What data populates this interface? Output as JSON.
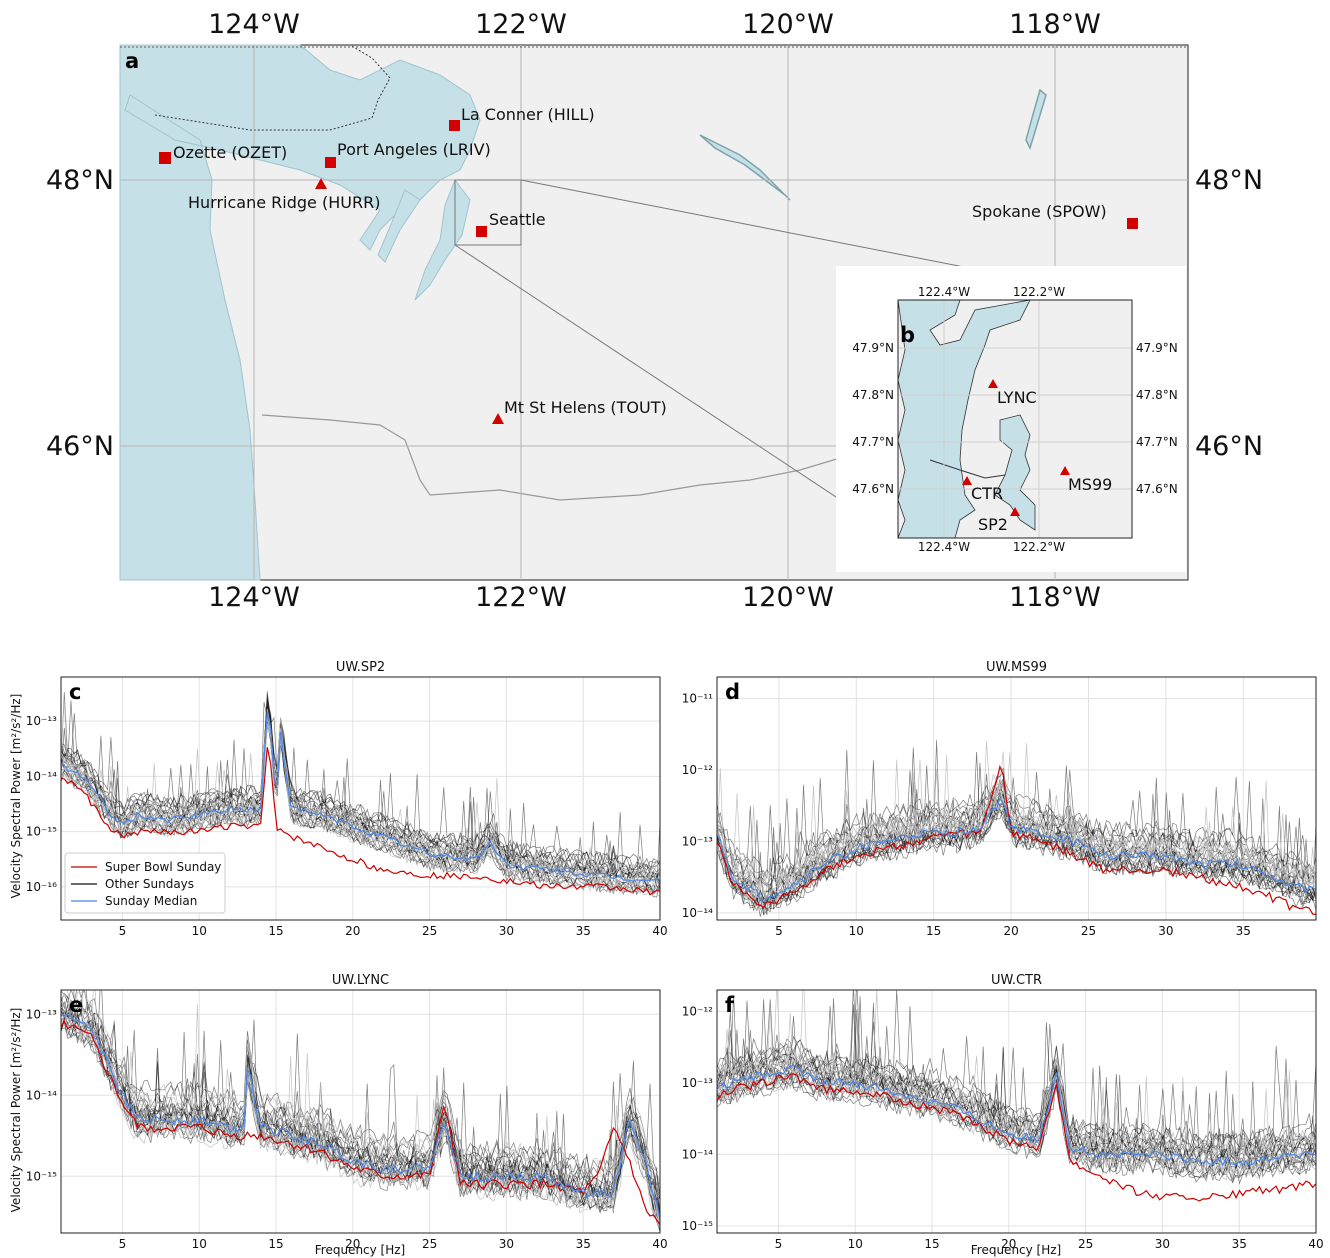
{
  "map_a": {
    "panel_label": "a",
    "lon_labels": [
      "124°W",
      "122°W",
      "120°W",
      "118°W"
    ],
    "lat_labels": [
      "48°N",
      "46°N"
    ],
    "stations": [
      {
        "name": "La Conner (HILL)",
        "lon": -122.5,
        "lat": 48.4,
        "symbol": "square"
      },
      {
        "name": "Ozette (OZET)",
        "lon": -124.65,
        "lat": 48.16,
        "symbol": "square"
      },
      {
        "name": "Port Angeles (LRIV)",
        "lon": -123.45,
        "lat": 48.13,
        "symbol": "square"
      },
      {
        "name": "Hurricane Ridge (HURR)",
        "lon": -123.5,
        "lat": 47.97,
        "symbol": "triangle"
      },
      {
        "name": "Seattle",
        "lon": -122.3,
        "lat": 47.61,
        "symbol": "square"
      },
      {
        "name": "Spokane (SPOW)",
        "lon": -117.45,
        "lat": 47.67,
        "symbol": "square"
      },
      {
        "name": "Mt St Helens (TOUT)",
        "lon": -122.2,
        "lat": 46.2,
        "symbol": "triangle"
      }
    ]
  },
  "map_b": {
    "panel_label": "b",
    "lon_labels": [
      "122.4°W",
      "122.2°W"
    ],
    "lat_labels": [
      "47.9°N",
      "47.8°N",
      "47.7°N",
      "47.6°N"
    ],
    "stations": [
      {
        "name": "LYNC",
        "lon": -122.3,
        "lat": 47.83
      },
      {
        "name": "CTR",
        "lon": -122.35,
        "lat": 47.62
      },
      {
        "name": "SP2",
        "lon": -122.25,
        "lat": 47.56
      },
      {
        "name": "MS99",
        "lon": -122.14,
        "lat": 47.64
      }
    ]
  },
  "colors": {
    "water": "#c6e0e8",
    "land": "#f0f0f0",
    "station": "#d40000",
    "super_bowl": "#cc0000",
    "other": "#111111",
    "median": "#4a86e8"
  },
  "y_axis_label": "Velocity Spectral Power [m²/s²/Hz]",
  "x_axis_label": "Frequency [Hz]",
  "legend": [
    "Super Bowl Sunday",
    "Other Sundays",
    "Sunday Median"
  ],
  "chart_data": [
    {
      "type": "line",
      "panel": "c",
      "title": "UW.SP2",
      "y_log": true,
      "xlim": [
        1,
        40
      ],
      "x_ticks": [
        5,
        10,
        15,
        20,
        25,
        30,
        35,
        40
      ],
      "ylim_exp": [
        -16.6,
        -12.2
      ],
      "y_ticks": [
        {
          "e": -13,
          "label": "10⁻¹³"
        },
        {
          "e": -14,
          "label": "10⁻¹⁴"
        },
        {
          "e": -15,
          "label": "10⁻¹⁵"
        },
        {
          "e": -16,
          "label": "10⁻¹⁶"
        }
      ],
      "median": [
        [
          1,
          -13.8
        ],
        [
          2.5,
          -14.0
        ],
        [
          4,
          -14.6
        ],
        [
          5,
          -14.9
        ],
        [
          6,
          -14.7
        ],
        [
          8,
          -14.8
        ],
        [
          10,
          -14.7
        ],
        [
          12,
          -14.6
        ],
        [
          14,
          -14.6
        ],
        [
          14.5,
          -12.6
        ],
        [
          15,
          -14.5
        ],
        [
          15.3,
          -13.2
        ],
        [
          16,
          -14.6
        ],
        [
          18,
          -14.7
        ],
        [
          20,
          -14.9
        ],
        [
          22,
          -15.1
        ],
        [
          25,
          -15.4
        ],
        [
          28,
          -15.5
        ],
        [
          29,
          -15.2
        ],
        [
          30,
          -15.6
        ],
        [
          33,
          -15.7
        ],
        [
          36,
          -15.8
        ],
        [
          40,
          -15.9
        ]
      ],
      "super_bowl": [
        [
          1,
          -14.0
        ],
        [
          2.5,
          -14.3
        ],
        [
          4,
          -14.9
        ],
        [
          5,
          -15.1
        ],
        [
          6,
          -15.0
        ],
        [
          8,
          -15.0
        ],
        [
          10,
          -15.0
        ],
        [
          12,
          -14.9
        ],
        [
          14,
          -14.9
        ],
        [
          14.5,
          -13.3
        ],
        [
          15,
          -14.9
        ],
        [
          16,
          -15.1
        ],
        [
          18,
          -15.3
        ],
        [
          20,
          -15.5
        ],
        [
          22,
          -15.7
        ],
        [
          25,
          -15.8
        ],
        [
          28,
          -15.8
        ],
        [
          30,
          -15.9
        ],
        [
          33,
          -16.0
        ],
        [
          36,
          -16.0
        ],
        [
          40,
          -16.1
        ]
      ]
    },
    {
      "type": "line",
      "panel": "d",
      "title": "UW.MS99",
      "y_log": true,
      "xlim": [
        1,
        39.7
      ],
      "x_ticks": [
        5,
        10,
        15,
        20,
        25,
        30,
        35
      ],
      "ylim_exp": [
        -14.1,
        -10.7
      ],
      "y_ticks": [
        {
          "e": -11,
          "label": "10⁻¹¹"
        },
        {
          "e": -12,
          "label": "10⁻¹²"
        },
        {
          "e": -13,
          "label": "10⁻¹³"
        },
        {
          "e": -14,
          "label": "10⁻¹⁴"
        }
      ],
      "median": [
        [
          1,
          -12.9
        ],
        [
          2,
          -13.5
        ],
        [
          4,
          -13.8
        ],
        [
          5,
          -13.7
        ],
        [
          6,
          -13.6
        ],
        [
          8,
          -13.3
        ],
        [
          10,
          -13.1
        ],
        [
          12,
          -13.0
        ],
        [
          14,
          -12.9
        ],
        [
          16,
          -12.9
        ],
        [
          18,
          -12.8
        ],
        [
          19.4,
          -12.4
        ],
        [
          20,
          -12.8
        ],
        [
          22,
          -12.9
        ],
        [
          24,
          -13.0
        ],
        [
          26,
          -13.2
        ],
        [
          28,
          -13.2
        ],
        [
          30,
          -13.2
        ],
        [
          32,
          -13.3
        ],
        [
          34,
          -13.3
        ],
        [
          36,
          -13.4
        ],
        [
          38,
          -13.6
        ],
        [
          39.7,
          -13.7
        ]
      ],
      "super_bowl": [
        [
          1,
          -13.0
        ],
        [
          2,
          -13.6
        ],
        [
          4,
          -13.9
        ],
        [
          5,
          -13.8
        ],
        [
          6,
          -13.7
        ],
        [
          8,
          -13.4
        ],
        [
          10,
          -13.2
        ],
        [
          12,
          -13.1
        ],
        [
          14,
          -13.0
        ],
        [
          16,
          -12.9
        ],
        [
          18,
          -12.9
        ],
        [
          19.4,
          -11.9
        ],
        [
          20,
          -12.9
        ],
        [
          22,
          -13.0
        ],
        [
          24,
          -13.2
        ],
        [
          26,
          -13.4
        ],
        [
          28,
          -13.4
        ],
        [
          30,
          -13.4
        ],
        [
          32,
          -13.5
        ],
        [
          34,
          -13.6
        ],
        [
          36,
          -13.7
        ],
        [
          38,
          -13.9
        ],
        [
          39.7,
          -14.0
        ]
      ]
    },
    {
      "type": "line",
      "panel": "e",
      "title": "UW.LYNC",
      "y_log": true,
      "xlim": [
        1,
        40
      ],
      "x_ticks": [
        5,
        10,
        15,
        20,
        25,
        30,
        35,
        40
      ],
      "ylim_exp": [
        -15.7,
        -12.7
      ],
      "y_ticks": [
        {
          "e": -13,
          "label": "10⁻¹³"
        },
        {
          "e": -14,
          "label": "10⁻¹⁴"
        },
        {
          "e": -15,
          "label": "10⁻¹⁵"
        }
      ],
      "median": [
        [
          1,
          -13.0
        ],
        [
          2,
          -13.1
        ],
        [
          3,
          -13.2
        ],
        [
          4,
          -13.6
        ],
        [
          5,
          -14.0
        ],
        [
          6,
          -14.3
        ],
        [
          8,
          -14.3
        ],
        [
          10,
          -14.3
        ],
        [
          12,
          -14.4
        ],
        [
          13,
          -14.4
        ],
        [
          13.1,
          -13.6
        ],
        [
          14,
          -14.4
        ],
        [
          16,
          -14.5
        ],
        [
          18,
          -14.6
        ],
        [
          20,
          -14.8
        ],
        [
          22,
          -14.9
        ],
        [
          25,
          -14.9
        ],
        [
          26,
          -14.3
        ],
        [
          27,
          -15.0
        ],
        [
          30,
          -15.0
        ],
        [
          32,
          -15.0
        ],
        [
          35,
          -15.2
        ],
        [
          37,
          -15.2
        ],
        [
          38,
          -14.3
        ],
        [
          39,
          -14.8
        ],
        [
          40,
          -15.5
        ]
      ],
      "super_bowl": [
        [
          1,
          -13.1
        ],
        [
          2,
          -13.2
        ],
        [
          3,
          -13.3
        ],
        [
          4,
          -13.7
        ],
        [
          5,
          -14.1
        ],
        [
          6,
          -14.4
        ],
        [
          8,
          -14.4
        ],
        [
          10,
          -14.4
        ],
        [
          12,
          -14.5
        ],
        [
          14,
          -14.5
        ],
        [
          16,
          -14.6
        ],
        [
          18,
          -14.7
        ],
        [
          20,
          -14.9
        ],
        [
          22,
          -15.0
        ],
        [
          25,
          -15.0
        ],
        [
          26,
          -14.1
        ],
        [
          27,
          -15.1
        ],
        [
          30,
          -15.1
        ],
        [
          33,
          -15.1
        ],
        [
          35,
          -15.2
        ],
        [
          36,
          -15.0
        ],
        [
          37,
          -14.4
        ],
        [
          38,
          -14.8
        ],
        [
          39,
          -15.4
        ],
        [
          40,
          -15.6
        ]
      ]
    },
    {
      "type": "line",
      "panel": "f",
      "title": "UW.CTR",
      "y_log": true,
      "xlim": [
        1,
        40
      ],
      "x_ticks": [
        5,
        10,
        15,
        20,
        25,
        30,
        35,
        40
      ],
      "ylim_exp": [
        -15.1,
        -11.7
      ],
      "y_ticks": [
        {
          "e": -12,
          "label": "10⁻¹²"
        },
        {
          "e": -13,
          "label": "10⁻¹³"
        },
        {
          "e": -14,
          "label": "10⁻¹⁴"
        },
        {
          "e": -15,
          "label": "10⁻¹⁵"
        }
      ],
      "median": [
        [
          1,
          -13.1
        ],
        [
          2,
          -13.0
        ],
        [
          4,
          -12.9
        ],
        [
          6,
          -12.8
        ],
        [
          8,
          -13.0
        ],
        [
          10,
          -13.0
        ],
        [
          12,
          -13.1
        ],
        [
          14,
          -13.2
        ],
        [
          16,
          -13.3
        ],
        [
          18,
          -13.5
        ],
        [
          20,
          -13.7
        ],
        [
          22,
          -13.8
        ],
        [
          23.1,
          -12.9
        ],
        [
          24,
          -13.9
        ],
        [
          26,
          -14.0
        ],
        [
          28,
          -14.0
        ],
        [
          30,
          -14.0
        ],
        [
          32,
          -14.1
        ],
        [
          34,
          -14.1
        ],
        [
          36,
          -14.1
        ],
        [
          38,
          -14.0
        ],
        [
          40,
          -14.0
        ]
      ],
      "super_bowl": [
        [
          1,
          -13.2
        ],
        [
          2,
          -13.1
        ],
        [
          4,
          -13.0
        ],
        [
          6,
          -12.9
        ],
        [
          8,
          -13.1
        ],
        [
          10,
          -13.1
        ],
        [
          12,
          -13.2
        ],
        [
          14,
          -13.3
        ],
        [
          16,
          -13.4
        ],
        [
          18,
          -13.6
        ],
        [
          20,
          -13.8
        ],
        [
          22,
          -13.9
        ],
        [
          23.1,
          -13.0
        ],
        [
          24,
          -14.1
        ],
        [
          26,
          -14.3
        ],
        [
          28,
          -14.5
        ],
        [
          30,
          -14.6
        ],
        [
          32,
          -14.6
        ],
        [
          34,
          -14.6
        ],
        [
          36,
          -14.5
        ],
        [
          38,
          -14.5
        ],
        [
          40,
          -14.4
        ]
      ]
    }
  ]
}
